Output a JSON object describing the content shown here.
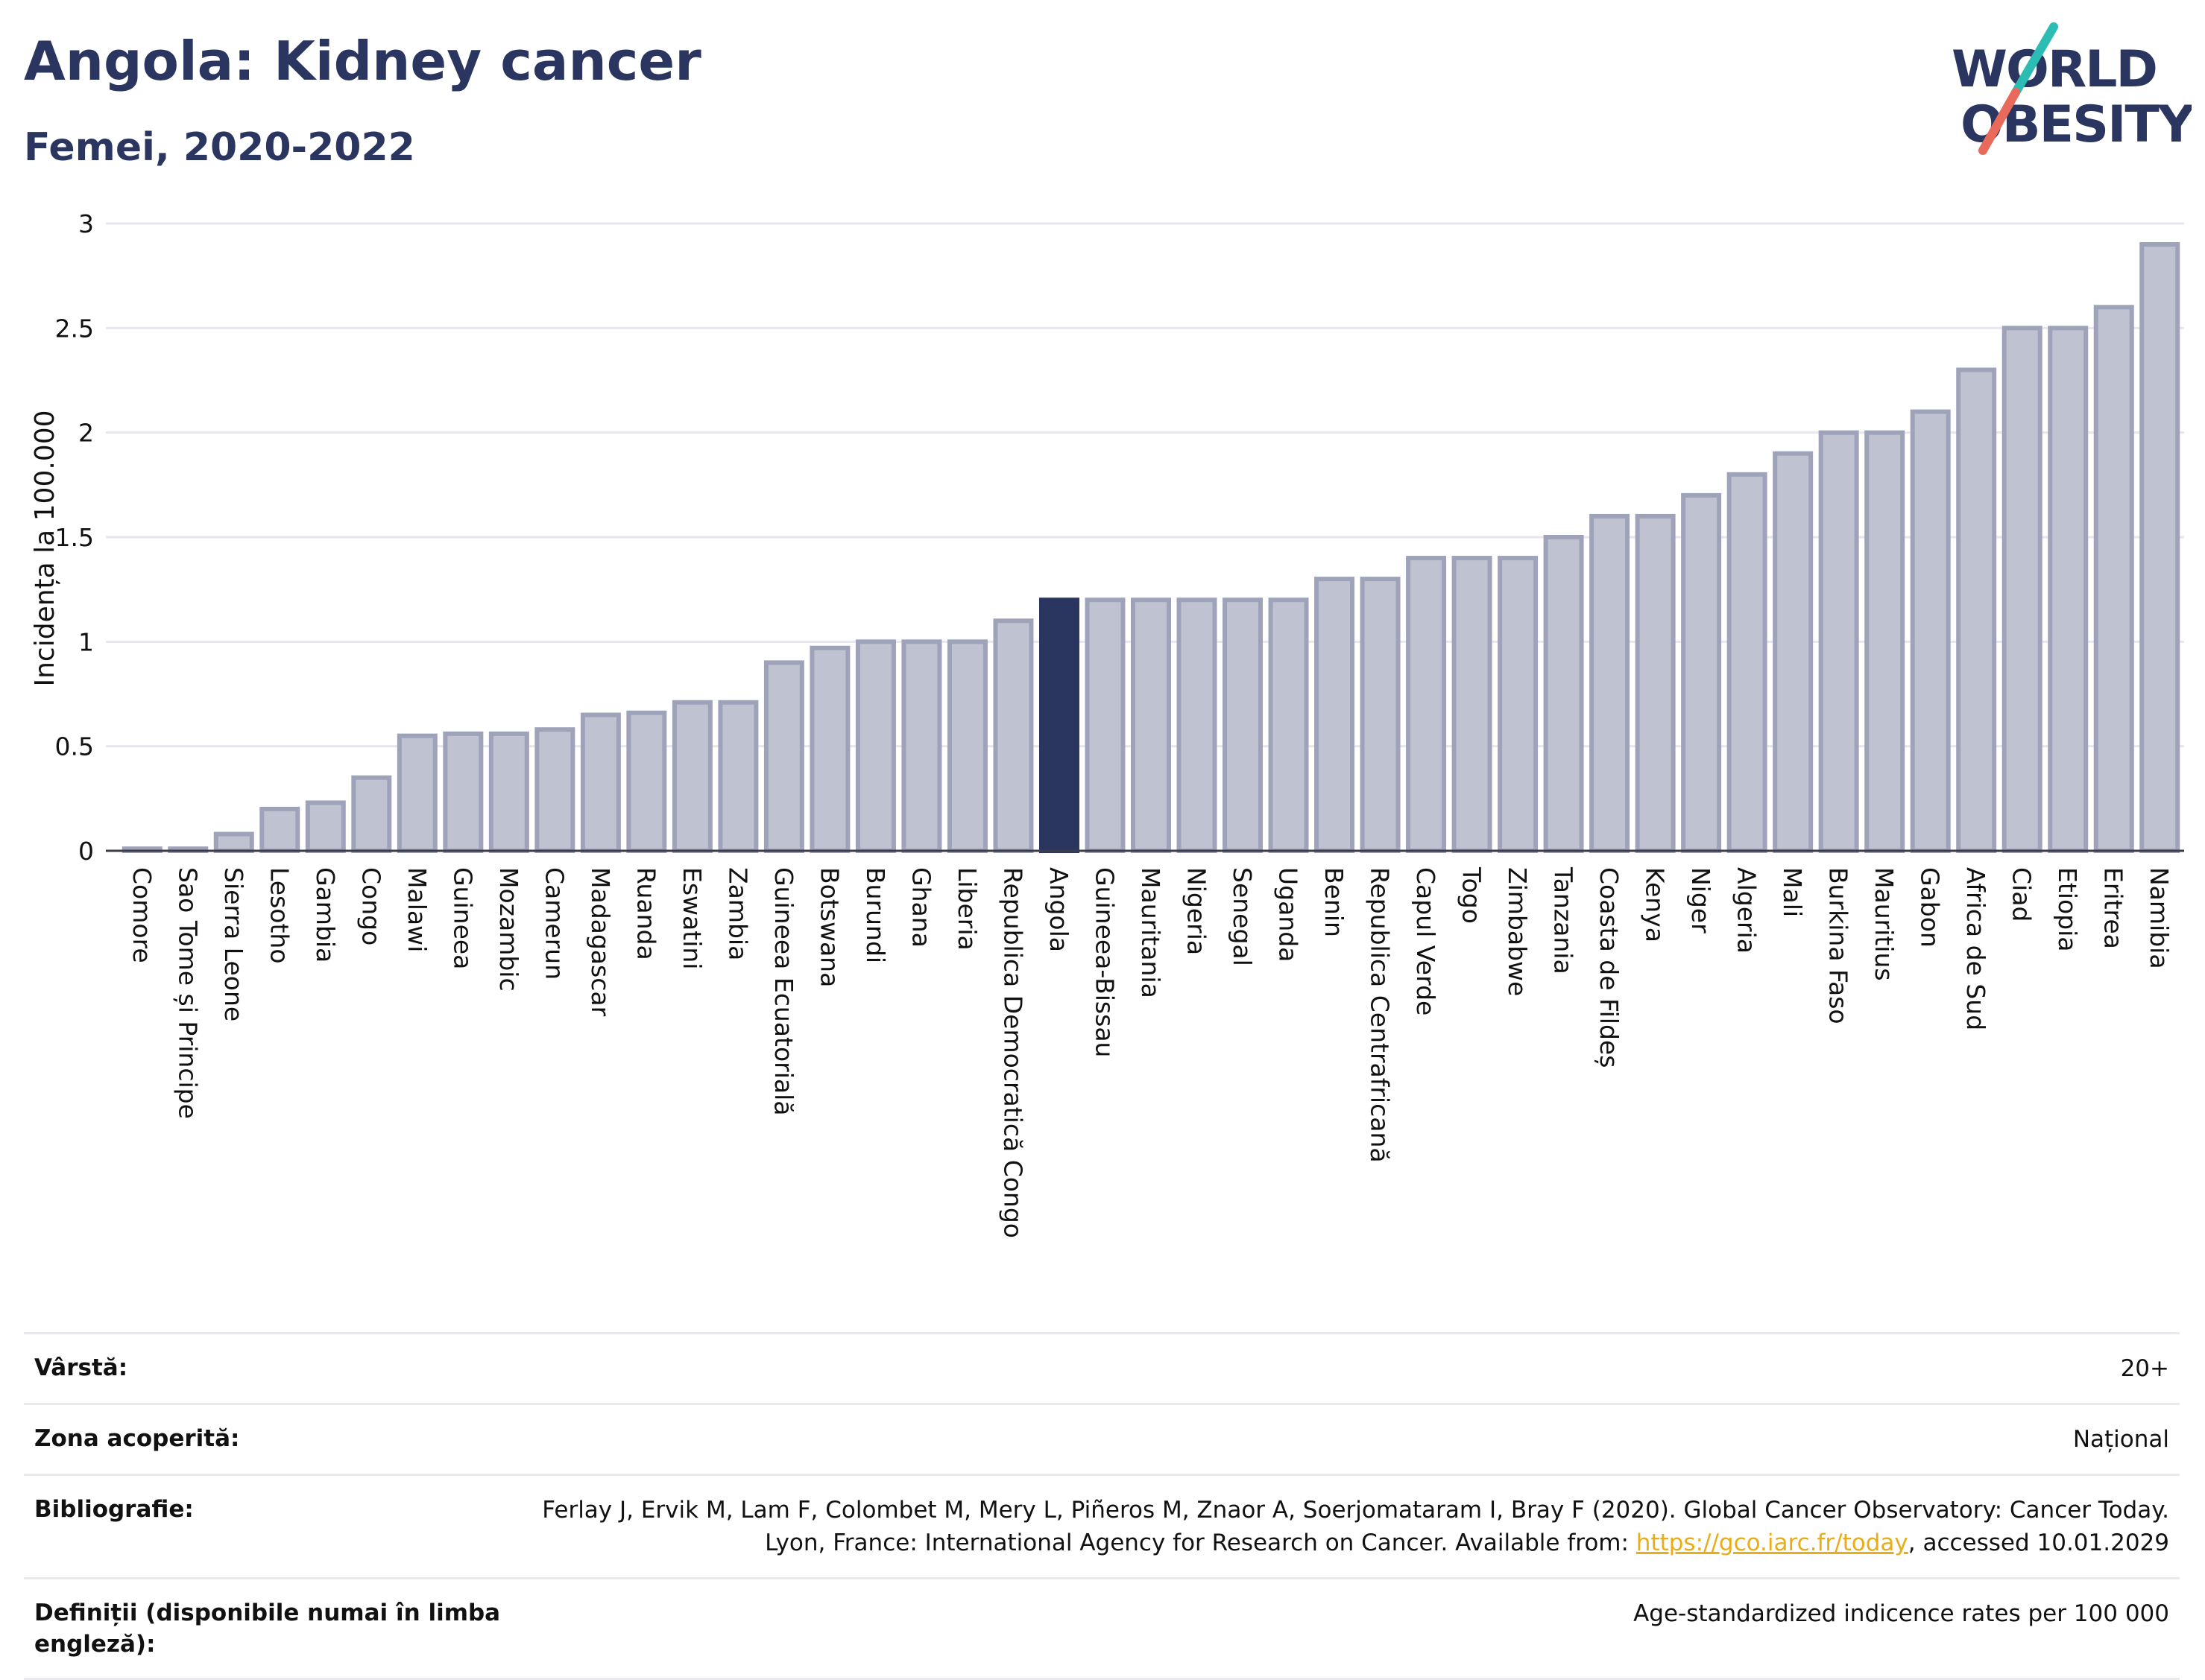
{
  "header": {
    "title": "Angola: Kidney cancer",
    "subtitle": "Femei, 2020-2022",
    "logo_text": "WORLD OBESITY"
  },
  "colors": {
    "title": "#2a3560",
    "bar_default": "#bec2d1",
    "bar_default_stroke": "#9ea3b9",
    "bar_highlight": "#2a3560",
    "logo_teal": "#2bbdb3",
    "logo_coral": "#e9695a",
    "link": "#e9ad17"
  },
  "chart_data": {
    "type": "bar",
    "ylabel": "Incidența la 100.000",
    "ylim": [
      0,
      3
    ],
    "yticks": [
      0,
      0.5,
      1,
      1.5,
      2,
      2.5,
      3
    ],
    "ytick_labels": [
      "0",
      "0.5",
      "1",
      "1.5",
      "2",
      "2.5",
      "3"
    ],
    "grid": true,
    "highlight": "Angola",
    "categories": [
      "Comore",
      "Sao Tome și Principe",
      "Sierra Leone",
      "Lesotho",
      "Gambia",
      "Congo",
      "Malawi",
      "Guineea",
      "Mozambic",
      "Camerun",
      "Madagascar",
      "Ruanda",
      "Eswatini",
      "Zambia",
      "Guineea Ecuatorială",
      "Botswana",
      "Burundi",
      "Ghana",
      "Liberia",
      "Republica Democratică Congo",
      "Angola",
      "Guineea-Bissau",
      "Mauritania",
      "Nigeria",
      "Senegal",
      "Uganda",
      "Benin",
      "Republica Centrafricană",
      "Capul Verde",
      "Togo",
      "Zimbabwe",
      "Tanzania",
      "Coasta de Fildeș",
      "Kenya",
      "Niger",
      "Algeria",
      "Mali",
      "Burkina Faso",
      "Mauritius",
      "Gabon",
      "Africa de Sud",
      "Ciad",
      "Etiopia",
      "Eritrea",
      "Namibia"
    ],
    "values": [
      0.01,
      0.01,
      0.08,
      0.2,
      0.23,
      0.35,
      0.55,
      0.56,
      0.56,
      0.58,
      0.65,
      0.66,
      0.71,
      0.71,
      0.9,
      0.97,
      1.0,
      1.0,
      1.0,
      1.1,
      1.2,
      1.2,
      1.2,
      1.2,
      1.2,
      1.2,
      1.3,
      1.3,
      1.4,
      1.4,
      1.4,
      1.5,
      1.6,
      1.6,
      1.7,
      1.8,
      1.9,
      2.0,
      2.0,
      2.1,
      2.3,
      2.5,
      2.5,
      2.6,
      2.9
    ]
  },
  "info": {
    "age_label": "Vârstă:",
    "age_value": "20+",
    "area_label": "Zona acoperită:",
    "area_value": "Național",
    "bib_label": "Bibliografie:",
    "bib_text_1": "Ferlay J, Ervik M, Lam F, Colombet M, Mery L, Piñeros M, Znaor A, Soerjomataram I, Bray F (2020). Global Cancer Observatory: Cancer Today. Lyon, France: International Agency for Research on Cancer. Available from: ",
    "bib_link": "https://gco.iarc.fr/today",
    "bib_text_2": ", accessed 10.01.2029",
    "def_label": "Definiții (disponibile numai în limba engleză):",
    "def_value": "Age-standardized indicence rates per 100 000"
  }
}
